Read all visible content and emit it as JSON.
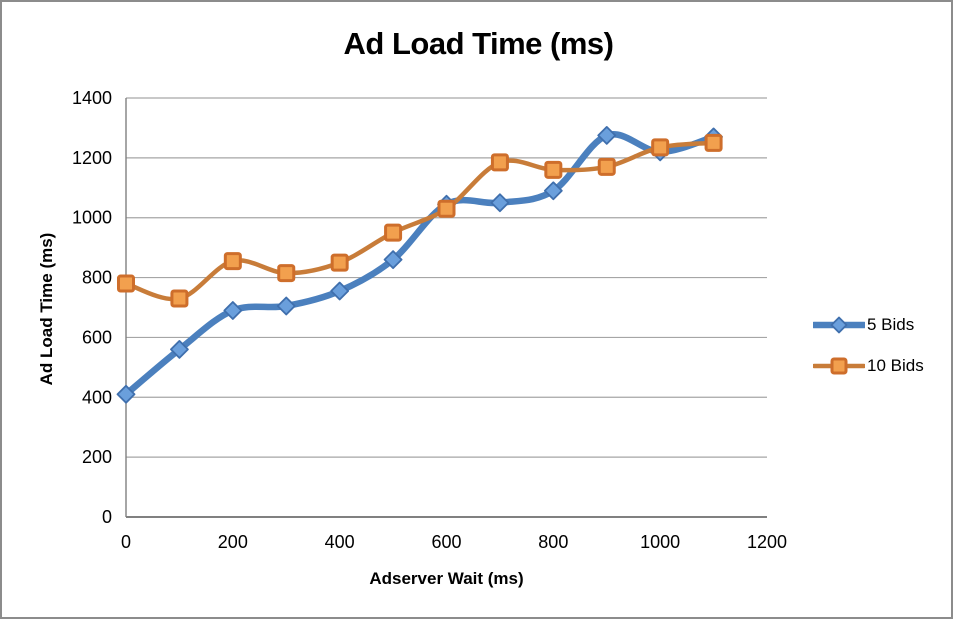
{
  "chart_data": {
    "type": "line",
    "title": "Ad Load Time (ms)",
    "xlabel": "Adserver Wait (ms)",
    "ylabel": "Ad Load Time (ms)",
    "x": [
      0,
      100,
      200,
      300,
      400,
      500,
      600,
      700,
      800,
      900,
      1000,
      1100
    ],
    "series": [
      {
        "name": "5 Bids",
        "marker": "diamond",
        "line_color": "#4B80BE",
        "marker_fill": "#6A9FDC",
        "marker_border": "#3F6FAD",
        "line_width": 6.5,
        "values": [
          410,
          560,
          690,
          705,
          755,
          860,
          1045,
          1050,
          1090,
          1275,
          1220,
          1270
        ]
      },
      {
        "name": "10 Bids",
        "marker": "square",
        "line_color": "#C87C39",
        "marker_fill": "#F2A04E",
        "marker_border": "#CE6E2B",
        "line_width": 4.5,
        "values": [
          780,
          730,
          855,
          815,
          850,
          950,
          1030,
          1185,
          1160,
          1170,
          1235,
          1250
        ]
      }
    ],
    "xlim": [
      0,
      1200
    ],
    "ylim": [
      0,
      1400
    ],
    "x_ticks": [
      0,
      200,
      400,
      600,
      800,
      1000,
      1200
    ],
    "y_ticks": [
      0,
      200,
      400,
      600,
      800,
      1000,
      1200,
      1400
    ],
    "grid": "horizontal",
    "legend_position": "right",
    "grid_color": "#A6A6A6",
    "axis_color": "#808080",
    "tick_label_color": "#000000"
  }
}
